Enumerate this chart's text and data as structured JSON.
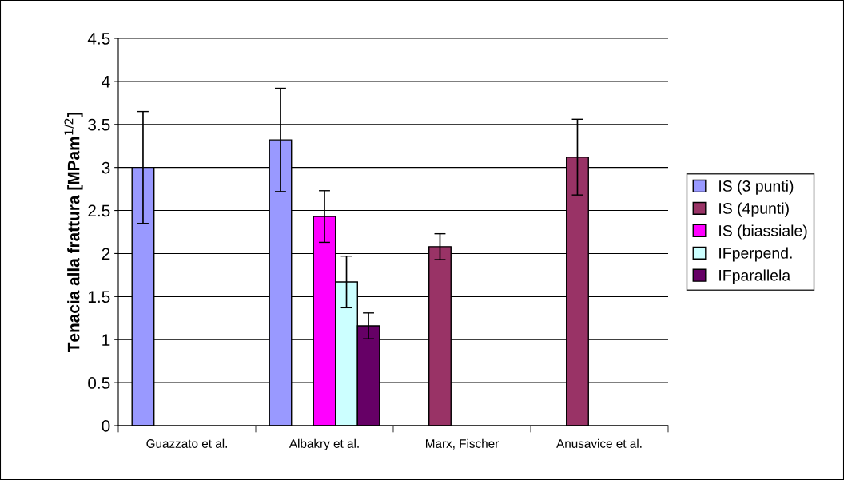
{
  "chart_data": {
    "type": "bar",
    "ylabel": "Tenacia alla frattura [MPam$^{1/2}$]",
    "categories": [
      "Guazzato et al.",
      "Albakry et al.",
      "Marx, Fischer",
      "Anusavice et al."
    ],
    "series": [
      {
        "name": "IS (3 punti)",
        "color": "#9999ff",
        "values": [
          3.0,
          3.32,
          null,
          null
        ],
        "errors": [
          0.65,
          0.6,
          null,
          null
        ]
      },
      {
        "name": "IS (4punti)",
        "color": "#993366",
        "values": [
          null,
          null,
          2.08,
          3.12
        ],
        "errors": [
          null,
          null,
          0.15,
          0.44
        ]
      },
      {
        "name": "IS (biassiale)",
        "color": "#ff00ff",
        "values": [
          null,
          2.43,
          null,
          null
        ],
        "errors": [
          null,
          0.3,
          null,
          null
        ]
      },
      {
        "name": "IFperpend.",
        "color": "#ccffff",
        "values": [
          null,
          1.67,
          null,
          null
        ],
        "errors": [
          null,
          0.3,
          null,
          null
        ]
      },
      {
        "name": "IFparallela",
        "color": "#660066",
        "values": [
          null,
          1.16,
          null,
          null
        ],
        "errors": [
          null,
          0.15,
          null,
          null
        ]
      }
    ],
    "ylim": [
      0,
      4.5
    ],
    "yticks": [
      0,
      0.5,
      1,
      1.5,
      2,
      2.5,
      3,
      3.5,
      4,
      4.5
    ],
    "grid": "y",
    "legend": "right"
  }
}
